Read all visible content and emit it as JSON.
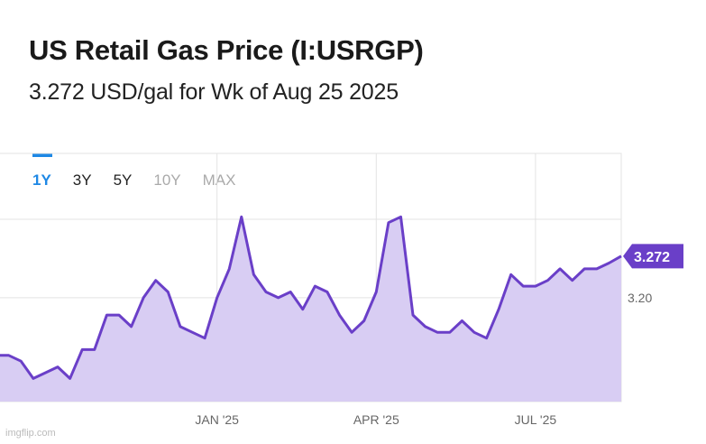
{
  "header": {
    "title": "US Retail Gas Price (I:USRGP)",
    "subtitle": "3.272 USD/gal for Wk of Aug 25 2025"
  },
  "range_tabs": [
    {
      "label": "1Y",
      "state": "active"
    },
    {
      "label": "3Y",
      "state": "enabled"
    },
    {
      "label": "5Y",
      "state": "enabled"
    },
    {
      "label": "10Y",
      "state": "disabled"
    },
    {
      "label": "MAX",
      "state": "disabled"
    }
  ],
  "watermark": "imgflip.com",
  "colors": {
    "line": "#6a3fc8",
    "fill": "#d8cdf3",
    "grid": "#e3e3e3",
    "active_tab": "#1e88e5",
    "badge": "#6a3fc8"
  },
  "chart_data": {
    "type": "area",
    "title": "",
    "xlabel": "",
    "ylabel": "",
    "x": [
      "2024-09-02",
      "2024-09-09",
      "2024-09-16",
      "2024-09-23",
      "2024-09-30",
      "2024-10-07",
      "2024-10-14",
      "2024-10-21",
      "2024-10-28",
      "2024-11-04",
      "2024-11-11",
      "2024-11-18",
      "2024-11-25",
      "2024-12-02",
      "2024-12-09",
      "2024-12-16",
      "2024-12-23",
      "2024-12-30",
      "2025-01-06",
      "2025-01-13",
      "2025-01-20",
      "2025-01-27",
      "2025-02-03",
      "2025-02-10",
      "2025-02-17",
      "2025-02-24",
      "2025-03-03",
      "2025-03-10",
      "2025-03-17",
      "2025-03-24",
      "2025-03-31",
      "2025-04-07",
      "2025-04-14",
      "2025-04-21",
      "2025-04-28",
      "2025-05-05",
      "2025-05-12",
      "2025-05-19",
      "2025-05-26",
      "2025-06-02",
      "2025-06-09",
      "2025-06-16",
      "2025-06-23",
      "2025-06-30",
      "2025-07-07",
      "2025-07-14",
      "2025-07-21",
      "2025-07-28",
      "2025-08-04",
      "2025-08-11",
      "2025-08-18",
      "2025-08-25"
    ],
    "series": [
      {
        "values": [
          3.1,
          3.1,
          3.09,
          3.06,
          3.07,
          3.08,
          3.06,
          3.11,
          3.11,
          3.17,
          3.17,
          3.15,
          3.2,
          3.23,
          3.21,
          3.15,
          3.14,
          3.13,
          3.2,
          3.25,
          3.34,
          3.24,
          3.21,
          3.2,
          3.21,
          3.18,
          3.22,
          3.21,
          3.17,
          3.14,
          3.16,
          3.21,
          3.33,
          3.34,
          3.17,
          3.15,
          3.14,
          3.14,
          3.16,
          3.14,
          3.13,
          3.18,
          3.24,
          3.22,
          3.22,
          3.23,
          3.25,
          3.23,
          3.25,
          3.25,
          3.26,
          3.272
        ]
      }
    ],
    "x_ticks": [
      {
        "x": "2025-01-06",
        "label": "JAN '25"
      },
      {
        "x": "2025-04-07",
        "label": "APR '25"
      },
      {
        "x": "2025-07-07",
        "label": "JUL '25"
      }
    ],
    "y_ticks": [
      3.2
    ],
    "ylim": [
      3.02,
      3.45
    ],
    "last_value_label": "3.272",
    "grid": true
  }
}
